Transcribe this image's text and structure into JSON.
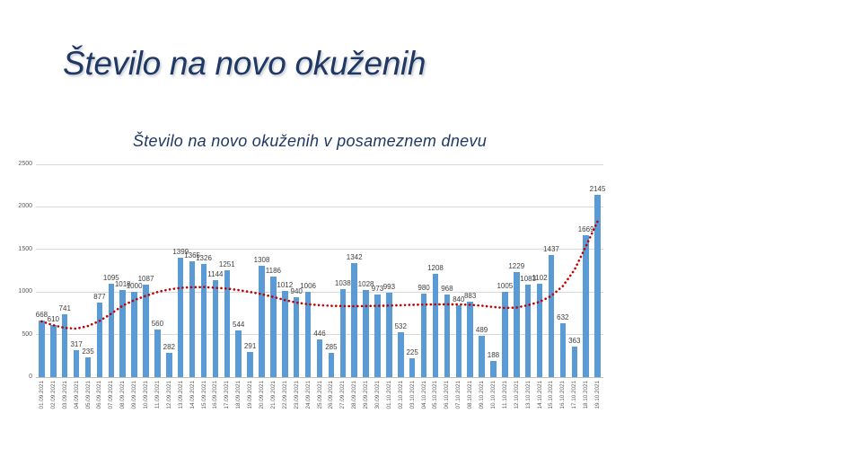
{
  "slide": {
    "title": "Število na novo okuženih"
  },
  "colors": {
    "title_navy": "#1F3864",
    "bar_fill": "#5B9BD5",
    "trend_red": "#C00000",
    "value_label": "#404040",
    "axis_text": "#595959",
    "gridline": "#D9D9D9",
    "axis_line": "#BFBFBF",
    "background": "#FFFFFF"
  },
  "chart_data": {
    "type": "bar",
    "title": "Število na novo okuženih v posameznem dnevu",
    "xlabel": "",
    "ylabel": "",
    "ylim": [
      0,
      2500
    ],
    "yticks": [
      0,
      500,
      1000,
      1500,
      2000,
      2500
    ],
    "grid": true,
    "data_labels": true,
    "legend": "none",
    "categories": [
      "01.09.2021",
      "02.09.2021",
      "03.09.2021",
      "04.09.2021",
      "05.09.2021",
      "06.09.2021",
      "07.09.2021",
      "08.09.2021",
      "09.09.2021",
      "10.09.2021",
      "11.09.2021",
      "12.09.2021",
      "13.09.2021",
      "14.09.2021",
      "15.09.2021",
      "16.09.2021",
      "17.09.2021",
      "18.09.2021",
      "19.09.2021",
      "20.09.2021",
      "21.09.2021",
      "22.09.2021",
      "23.09.2021",
      "24.09.2021",
      "25.09.2021",
      "26.09.2021",
      "27.09.2021",
      "28.09.2021",
      "29.09.2021",
      "30.09.2021",
      "01.10.2021",
      "02.10.2021",
      "03.10.2021",
      "04.10.2021",
      "05.10.2021",
      "06.10.2021",
      "07.10.2021",
      "08.10.2021",
      "09.10.2021",
      "10.10.2021",
      "11.10.2021",
      "12.10.2021",
      "13.10.2021",
      "14.10.2021",
      "15.10.2021",
      "16.10.2021",
      "17.10.2021",
      "18.10.2021",
      "19.10.2021"
    ],
    "series": [
      {
        "name": "daily-new-infections",
        "type": "bar",
        "values": [
          668,
          610,
          741,
          317,
          235,
          877,
          1095,
          1018,
          1000,
          1087,
          560,
          282,
          1399,
          1365,
          1326,
          1144,
          1251,
          544,
          291,
          1308,
          1186,
          1012,
          940,
          1006,
          446,
          285,
          1038,
          1342,
          1028,
          973,
          993,
          532,
          225,
          980,
          1208,
          968,
          840,
          883,
          489,
          188,
          1005,
          1229,
          1083,
          1102,
          1437,
          632,
          363,
          1669,
          2145
        ]
      },
      {
        "name": "trend-moving-average-estimated",
        "type": "line",
        "style": "dotted",
        "values": [
          655,
          610,
          578,
          570,
          600,
          660,
          745,
          840,
          905,
          955,
          1000,
          1030,
          1048,
          1056,
          1058,
          1050,
          1040,
          1022,
          1000,
          975,
          942,
          905,
          876,
          856,
          845,
          838,
          834,
          833,
          835,
          838,
          841,
          845,
          849,
          852,
          854,
          855,
          854,
          849,
          839,
          824,
          812,
          818,
          845,
          885,
          955,
          1070,
          1260,
          1540,
          1830
        ]
      }
    ]
  }
}
